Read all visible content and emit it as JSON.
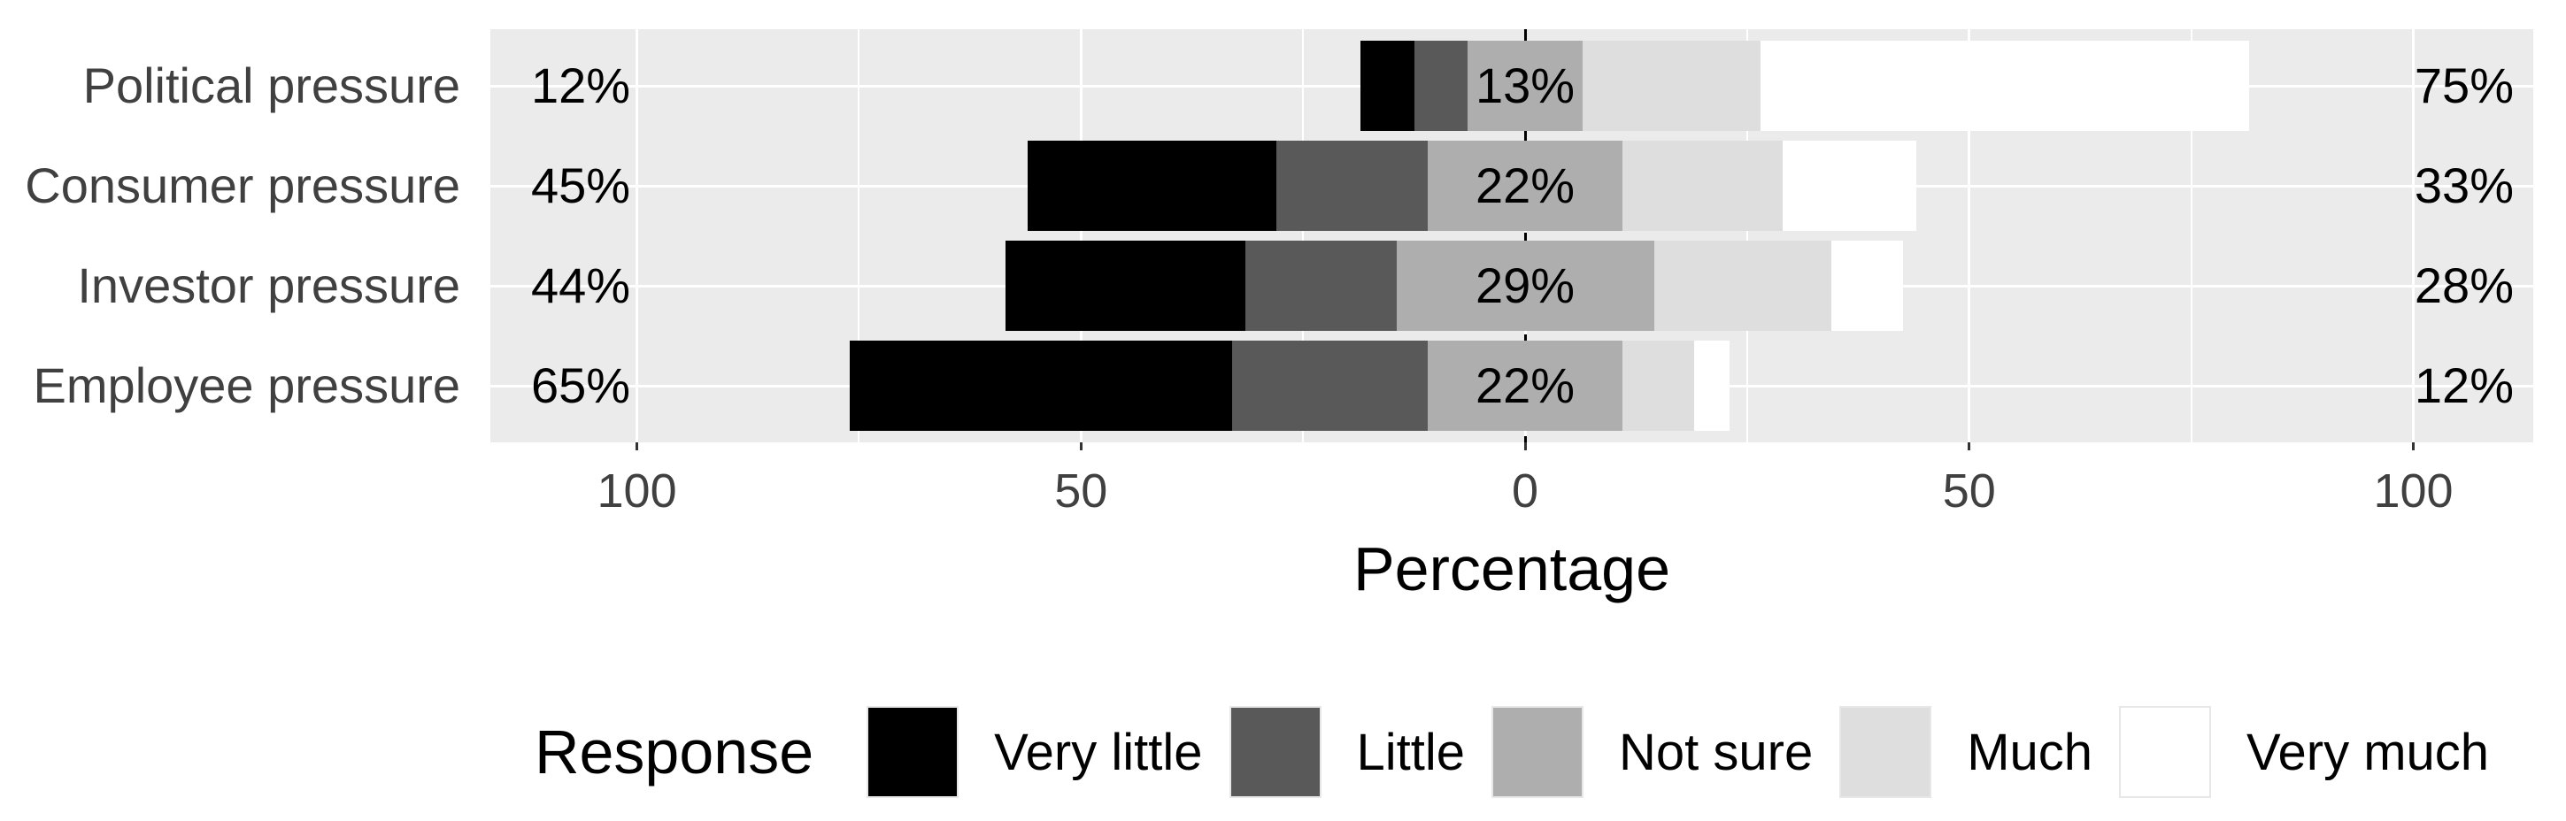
{
  "chart_data": {
    "type": "bar",
    "variant": "diverging-stacked-likert",
    "title": "",
    "xlabel": "Percentage",
    "categories": [
      "Political pressure",
      "Consumer pressure",
      "Investor pressure",
      "Employee pressure"
    ],
    "series": [
      {
        "name": "Very little",
        "color": "#000000",
        "values": [
          6,
          28,
          27,
          43
        ]
      },
      {
        "name": "Little",
        "color": "#595959",
        "values": [
          6,
          17,
          17,
          22
        ]
      },
      {
        "name": "Not sure",
        "color": "#aeaeae",
        "values": [
          13,
          22,
          29,
          22
        ]
      },
      {
        "name": "Much",
        "color": "#dedede",
        "values": [
          20,
          18,
          20,
          8
        ]
      },
      {
        "name": "Very much",
        "color": "#ffffff",
        "values": [
          55,
          15,
          8,
          4
        ]
      }
    ],
    "centered_series": "Not sure",
    "row_labels": {
      "left": [
        "12%",
        "45%",
        "44%",
        "65%"
      ],
      "center": [
        "13%",
        "22%",
        "29%",
        "22%"
      ],
      "right": [
        "75%",
        "33%",
        "28%",
        "12%"
      ]
    },
    "x_ticks": [
      {
        "v": -100,
        "label": "100"
      },
      {
        "v": -50,
        "label": "50"
      },
      {
        "v": 0,
        "label": "0"
      },
      {
        "v": 50,
        "label": "50"
      },
      {
        "v": 100,
        "label": "100"
      }
    ],
    "x_range": [
      -116.5,
      113.5
    ],
    "gridline_step": 25,
    "zero_line_style": "dashed",
    "legend": {
      "title": "Response",
      "position": "bottom"
    },
    "colors": {
      "panel_bg": "#ebebeb",
      "grid": "#ffffff",
      "axis_text": "#404040",
      "value_text": "#000000",
      "zero_line": "#000000",
      "tick_mark": "#333333"
    }
  }
}
